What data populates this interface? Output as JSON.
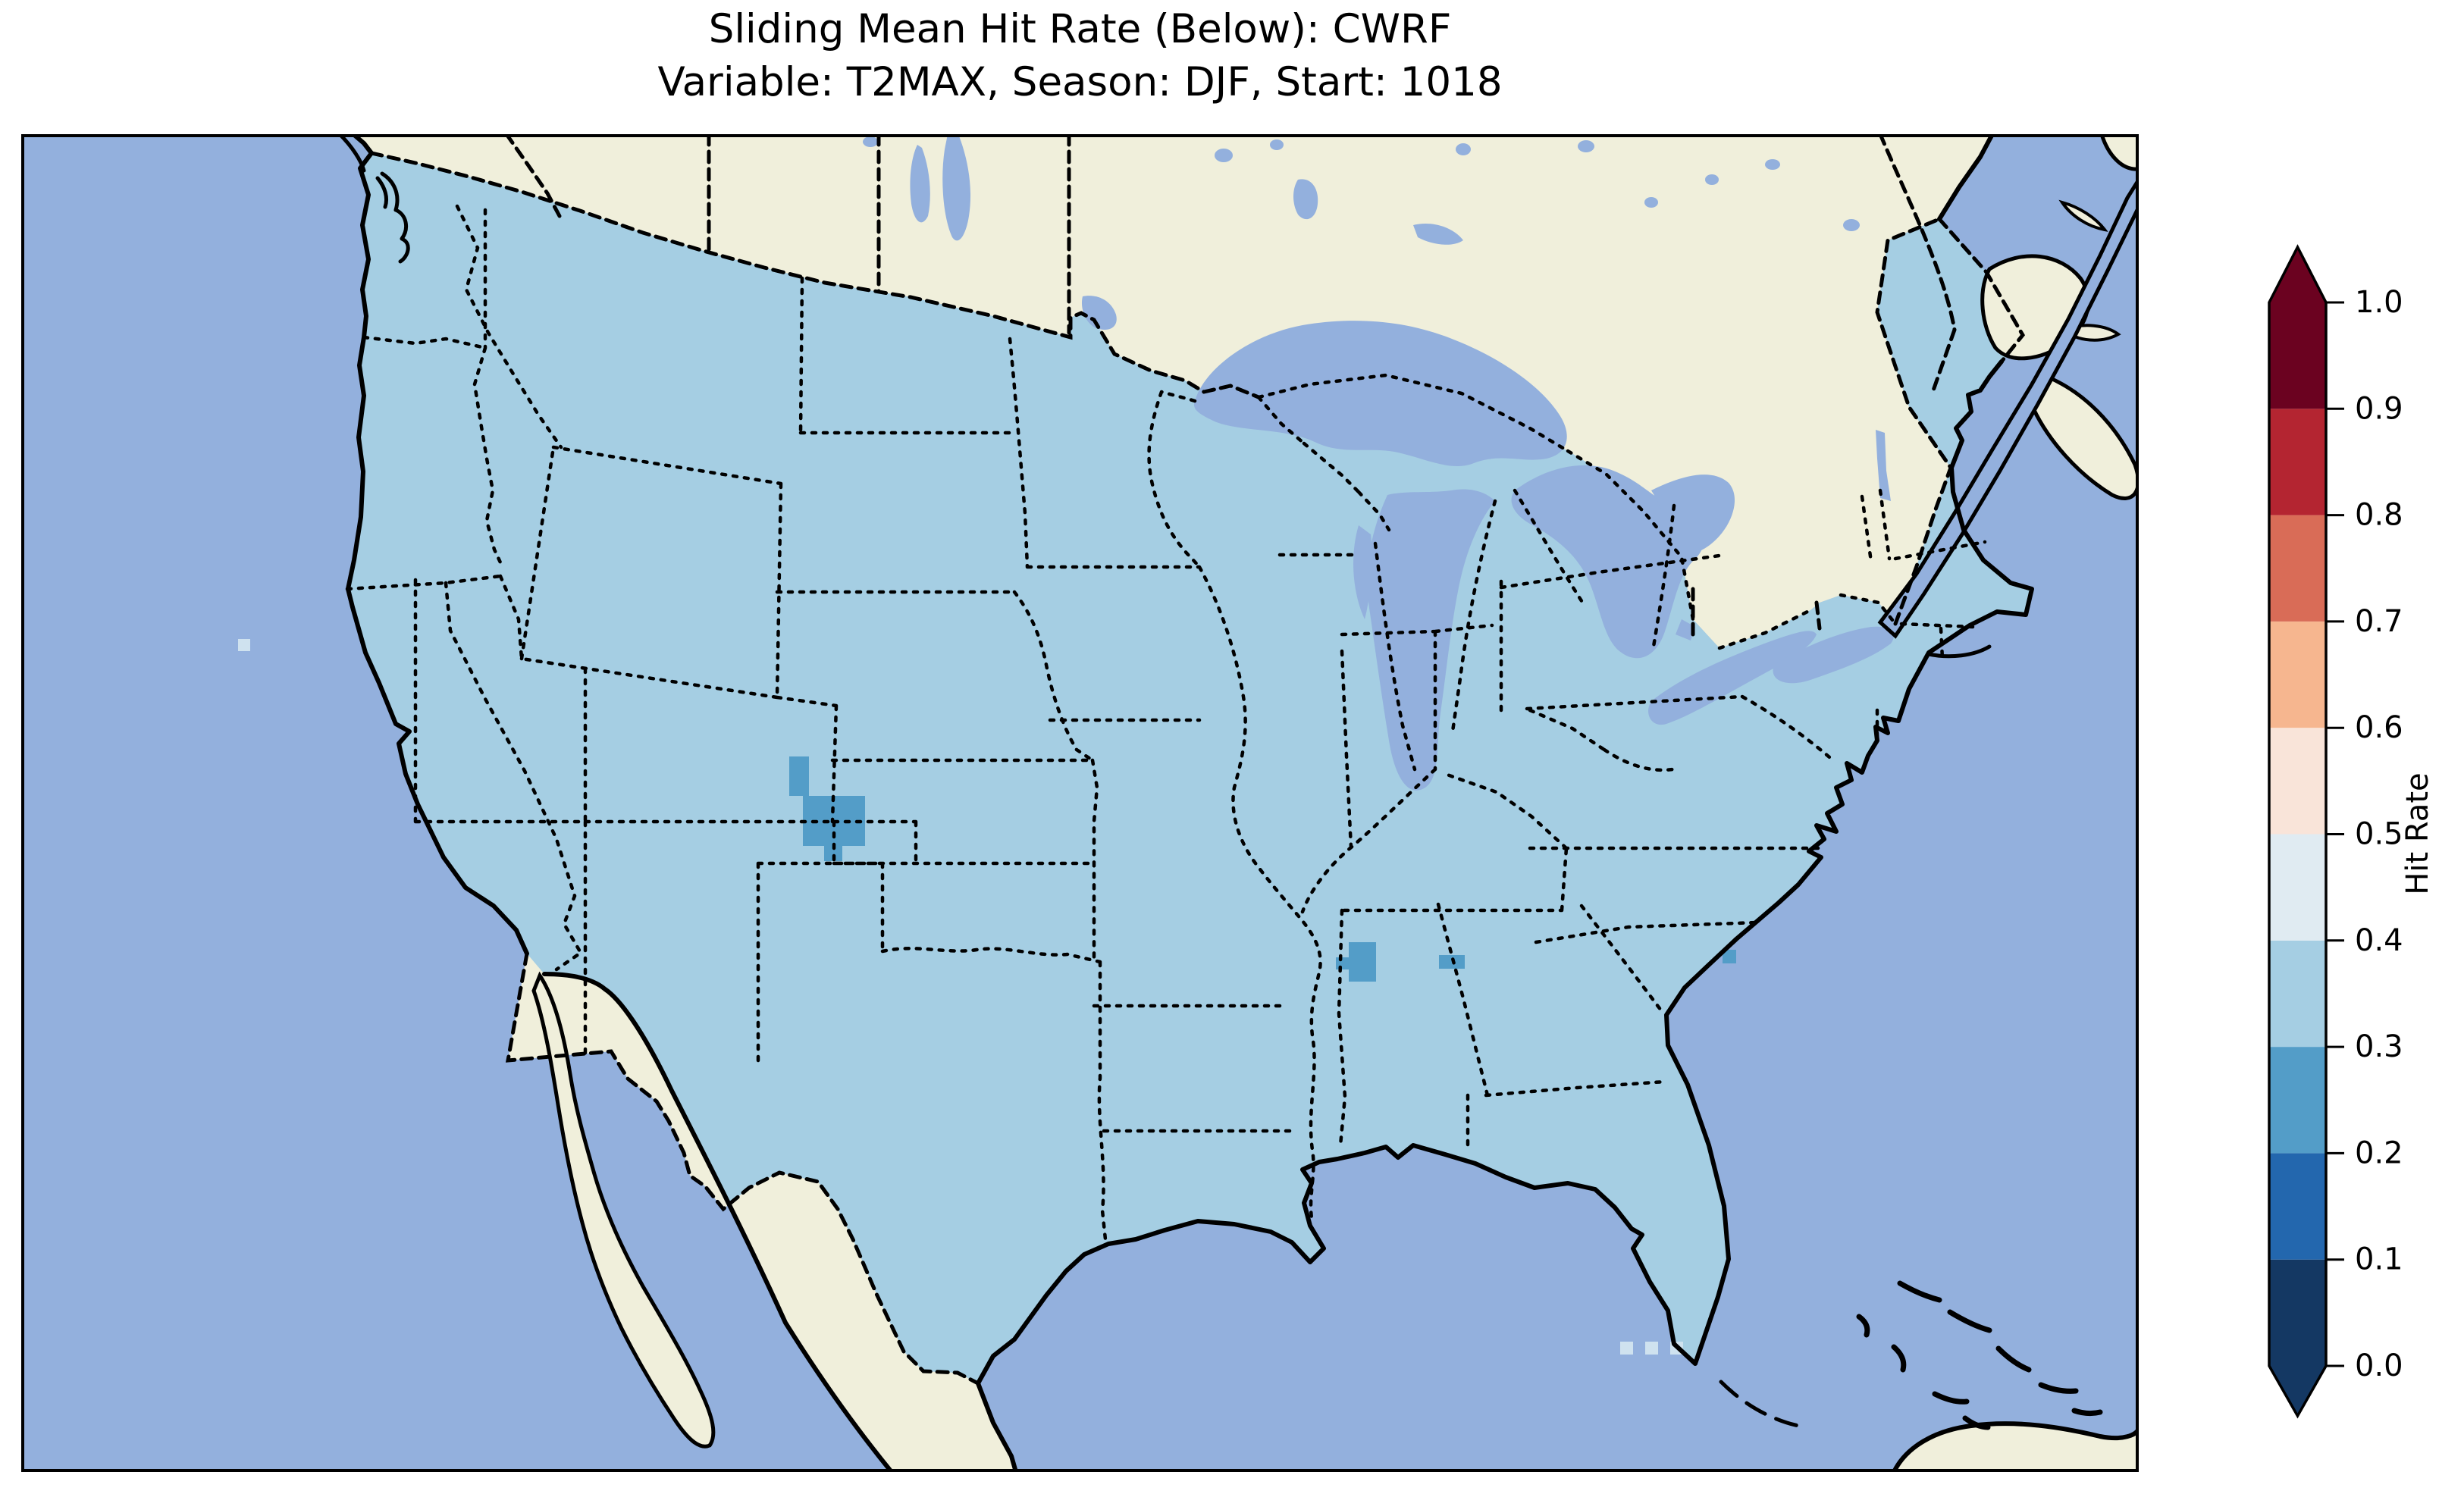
{
  "title": {
    "line1": "Sliding Mean Hit Rate (Below): CWRF",
    "line2": "Variable: T2MAX, Season: DJF, Start: 1018"
  },
  "chart_data": {
    "type": "heatmap",
    "title": "Sliding Mean Hit Rate (Below): CWRF",
    "subtitle": "Variable: T2MAX, Season: DJF, Start: 1018",
    "model": "CWRF",
    "metric": "Sliding Mean Hit Rate (Below)",
    "variable": "T2MAX",
    "season": "DJF",
    "start": "1018",
    "map": {
      "region": "Continental United States with southern Canada, Mexico, Gulf of Mexico, Caribbean fringe",
      "projection": "Lambert Conformal (cartopy-style)",
      "gridlines": false,
      "base_bin": "0.3-0.4",
      "anomalies": [
        {
          "area": "central Colorado cluster",
          "bin": "0.2-0.3",
          "value_est": 0.25
        },
        {
          "area": "Mississippi/Alabama border cells",
          "bin": "0.2-0.3",
          "value_est": 0.25
        },
        {
          "area": "west-central Georgia cell",
          "bin": "0.2-0.3",
          "value_est": 0.25
        },
        {
          "area": "South Carolina coast cell",
          "bin": "0.2-0.3",
          "value_est": 0.25
        },
        {
          "area": "Florida Keys vicinity cells",
          "bin": "0.4-0.5",
          "value_est": 0.45
        }
      ],
      "colors": {
        "ocean": "#93b0dd",
        "land": "#f0efdb",
        "us_fill": "#a5cee3",
        "cell_dark": "#539dc8",
        "cell_light": "#cfe2ef",
        "coast": "#000000",
        "border": "#000000",
        "frame": "#000000"
      }
    },
    "colorbar": {
      "label": "Hit Rate",
      "orientation": "vertical",
      "extend": "both",
      "ticks": [
        "0.0",
        "0.1",
        "0.2",
        "0.3",
        "0.4",
        "0.5",
        "0.6",
        "0.7",
        "0.8",
        "0.9",
        "1.0"
      ],
      "tick_values": [
        0.0,
        0.1,
        0.2,
        0.3,
        0.4,
        0.5,
        0.6,
        0.7,
        0.8,
        0.9,
        1.0
      ],
      "bins": [
        {
          "from": 0.0,
          "to": 0.1,
          "color": "#143863"
        },
        {
          "from": 0.1,
          "to": 0.2,
          "color": "#2367ae"
        },
        {
          "from": 0.2,
          "to": 0.3,
          "color": "#539dc8"
        },
        {
          "from": 0.3,
          "to": 0.4,
          "color": "#a5cee3"
        },
        {
          "from": 0.4,
          "to": 0.5,
          "color": "#e0ebf2"
        },
        {
          "from": 0.5,
          "to": 0.6,
          "color": "#f9e4d9"
        },
        {
          "from": 0.6,
          "to": 0.7,
          "color": "#f6b68f"
        },
        {
          "from": 0.7,
          "to": 0.8,
          "color": "#d96c57"
        },
        {
          "from": 0.8,
          "to": 0.9,
          "color": "#b42531"
        },
        {
          "from": 0.9,
          "to": 1.0,
          "color": "#6b0220"
        }
      ]
    }
  }
}
